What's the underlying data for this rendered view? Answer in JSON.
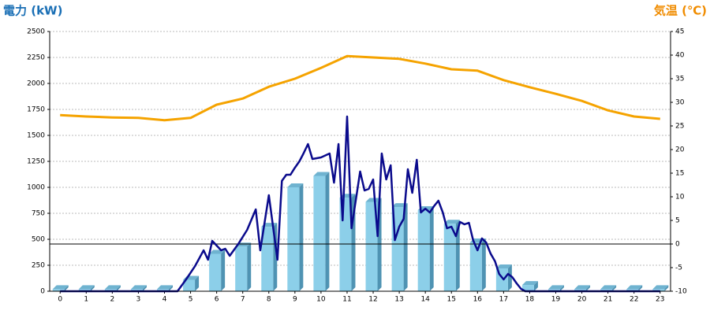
{
  "chart_data": {
    "type": "combo",
    "y_label": "電力 (kW)",
    "y2_label": "気温 (℃)",
    "xlim": [
      -0.4,
      23.4
    ],
    "xticks": [
      0,
      1,
      2,
      3,
      4,
      5,
      6,
      7,
      8,
      9,
      10,
      11,
      12,
      13,
      14,
      15,
      16,
      17,
      18,
      19,
      20,
      21,
      22,
      23
    ],
    "ylim": [
      0,
      2500
    ],
    "yticks": [
      0,
      250,
      500,
      750,
      1000,
      1250,
      1500,
      1750,
      2000,
      2250,
      2500
    ],
    "y2lim": [
      -10,
      45
    ],
    "y2ticks": [
      -10,
      -5,
      0,
      5,
      10,
      15,
      20,
      25,
      30,
      35,
      40,
      45
    ],
    "y2_refline": 0,
    "grid": true,
    "series": [
      {
        "type": "bar",
        "color": "#8ccfe9",
        "x": [
          0,
          1,
          2,
          3,
          4,
          5,
          6,
          7,
          8,
          9,
          10,
          11,
          12,
          13,
          14,
          15,
          16,
          17,
          18,
          19,
          20,
          21,
          22,
          23
        ],
        "values": [
          20,
          20,
          20,
          20,
          20,
          110,
          360,
          430,
          620,
          1000,
          1110,
          900,
          860,
          810,
          780,
          650,
          470,
          220,
          60,
          20,
          20,
          20,
          20,
          20
        ]
      },
      {
        "type": "line",
        "color": "#0a0a8c",
        "x": [
          0,
          4.5,
          4.83,
          5.17,
          5.5,
          5.67,
          5.83,
          6.17,
          6.33,
          6.5,
          6.83,
          7.17,
          7.5,
          7.67,
          8.0,
          8.33,
          8.5,
          8.67,
          8.83,
          9.0,
          9.17,
          9.33,
          9.5,
          9.67,
          10.0,
          10.33,
          10.5,
          10.67,
          10.83,
          11.0,
          11.17,
          11.33,
          11.5,
          11.67,
          11.83,
          12.0,
          12.17,
          12.33,
          12.5,
          12.67,
          12.83,
          13.0,
          13.17,
          13.33,
          13.5,
          13.67,
          13.83,
          14.0,
          14.17,
          14.33,
          14.5,
          14.67,
          14.83,
          15.0,
          15.17,
          15.33,
          15.5,
          15.67,
          15.83,
          16.0,
          16.17,
          16.33,
          16.5,
          16.67,
          16.83,
          17.0,
          17.17,
          17.33,
          17.5,
          17.67,
          17.83,
          23
        ],
        "values": [
          0,
          0,
          114,
          242,
          394,
          303,
          485,
          394,
          409,
          341,
          455,
          591,
          788,
          394,
          924,
          303,
          1061,
          1121,
          1121,
          1189,
          1250,
          1326,
          1417,
          1273,
          1288,
          1326,
          1045,
          1417,
          682,
          1682,
          606,
          871,
          1152,
          970,
          985,
          1076,
          530,
          1326,
          1076,
          1212,
          492,
          621,
          697,
          1174,
          947,
          1265,
          758,
          795,
          758,
          818,
          871,
          758,
          606,
          621,
          530,
          667,
          644,
          659,
          492,
          394,
          508,
          470,
          364,
          288,
          167,
          114,
          167,
          136,
          76,
          23,
          0,
          0
        ]
      },
      {
        "type": "line",
        "axis": "y2",
        "color": "#f5a300",
        "x": [
          0,
          1,
          2,
          3,
          4,
          5,
          6,
          7,
          8,
          9,
          10,
          11,
          12,
          13,
          14,
          15,
          16,
          17,
          18,
          19,
          20,
          21,
          22,
          23
        ],
        "values": [
          27.3,
          27,
          26.8,
          26.7,
          26.2,
          26.7,
          29.5,
          30.8,
          33.3,
          35,
          37.3,
          39.8,
          39.5,
          39.2,
          38.2,
          37,
          36.7,
          34.7,
          33.2,
          31.8,
          30.3,
          28.3,
          27,
          26.5
        ]
      }
    ]
  }
}
